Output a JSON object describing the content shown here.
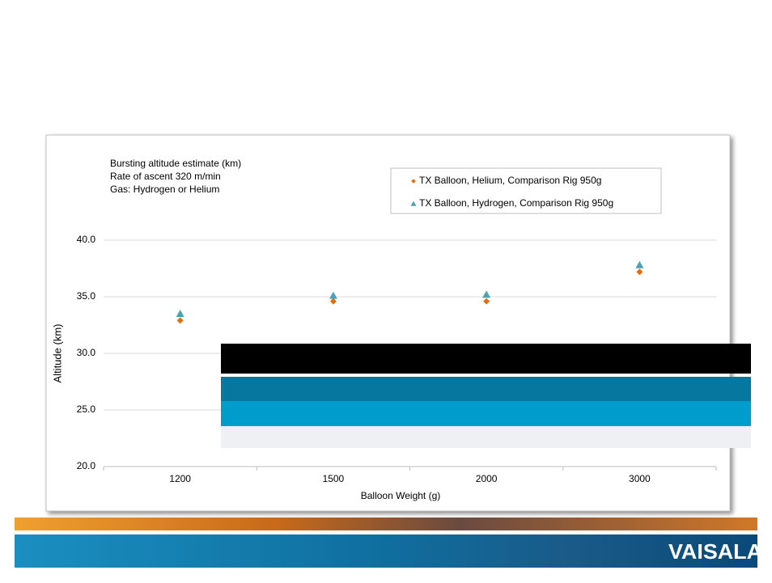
{
  "chart_data": {
    "type": "scatter",
    "annotations": [
      "Bursting altitude estimate (km)",
      "Rate of ascent 320 m/min",
      "Gas: Hydrogen or Helium"
    ],
    "x_label": "Balloon Weight (g)",
    "y_label": "Altitude (km)",
    "categories": [
      "1200",
      "1500",
      "2000",
      "3000"
    ],
    "series": [
      {
        "name": "TX Balloon, Helium, Comparison Rig 950g",
        "color": "#e46c0a",
        "marker": "diamond",
        "values": [
          32.9,
          34.6,
          34.6,
          37.2
        ]
      },
      {
        "name": "TX Balloon, Hydrogen, Comparison Rig 950g",
        "color": "#4aa3b5",
        "marker": "triangle",
        "values": [
          33.5,
          35.1,
          35.2,
          37.8
        ]
      }
    ],
    "ylim": [
      20,
      40
    ],
    "yticks": [
      {
        "value": 20,
        "label": "20.0"
      },
      {
        "value": 25,
        "label": "25.0"
      },
      {
        "value": 30,
        "label": "30.0"
      },
      {
        "value": 35,
        "label": "35.0"
      },
      {
        "value": 40,
        "label": "40.0"
      }
    ],
    "grid": true,
    "legend": "top-right"
  },
  "logo": "VAISALA"
}
